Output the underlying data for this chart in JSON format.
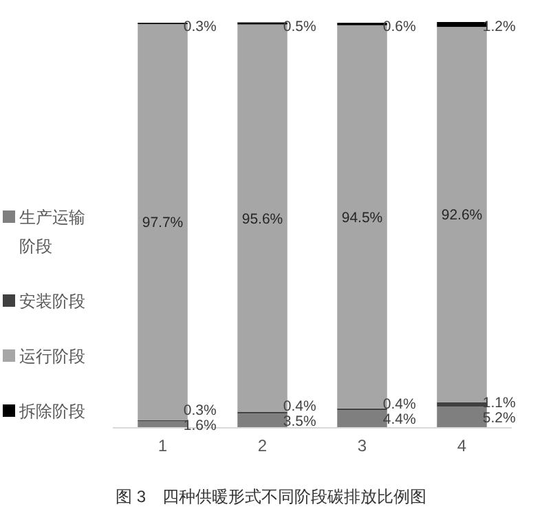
{
  "chart_data": {
    "type": "bar",
    "title": "图 3　四种供暖形式不同阶段碳排放比例图",
    "categories": [
      "1",
      "2",
      "3",
      "4"
    ],
    "stacked": true,
    "legend": "left",
    "series": [
      {
        "name": "生产运输阶段",
        "color": "#7f7f7f",
        "values": [
          1.6,
          3.5,
          4.4,
          5.2
        ],
        "value_labels": [
          "1.6%",
          "3.5%",
          "4.4%",
          "5.2%"
        ]
      },
      {
        "name": "安装阶段",
        "color": "#404040",
        "values": [
          0.3,
          0.4,
          0.4,
          1.1
        ],
        "value_labels": [
          "0.3%",
          "0.4%",
          "0.4%",
          "1.1%"
        ]
      },
      {
        "name": "运行阶段",
        "color": "#a6a6a6",
        "values": [
          97.7,
          95.6,
          94.5,
          92.6
        ],
        "value_labels": [
          "97.7%",
          "95.6%",
          "94.5%",
          "92.6%"
        ]
      },
      {
        "name": "拆除阶段",
        "color": "#000000",
        "values": [
          0.3,
          0.5,
          0.6,
          1.2
        ],
        "value_labels": [
          "0.3%",
          "0.5%",
          "0.6%",
          "1.2%"
        ]
      }
    ]
  }
}
